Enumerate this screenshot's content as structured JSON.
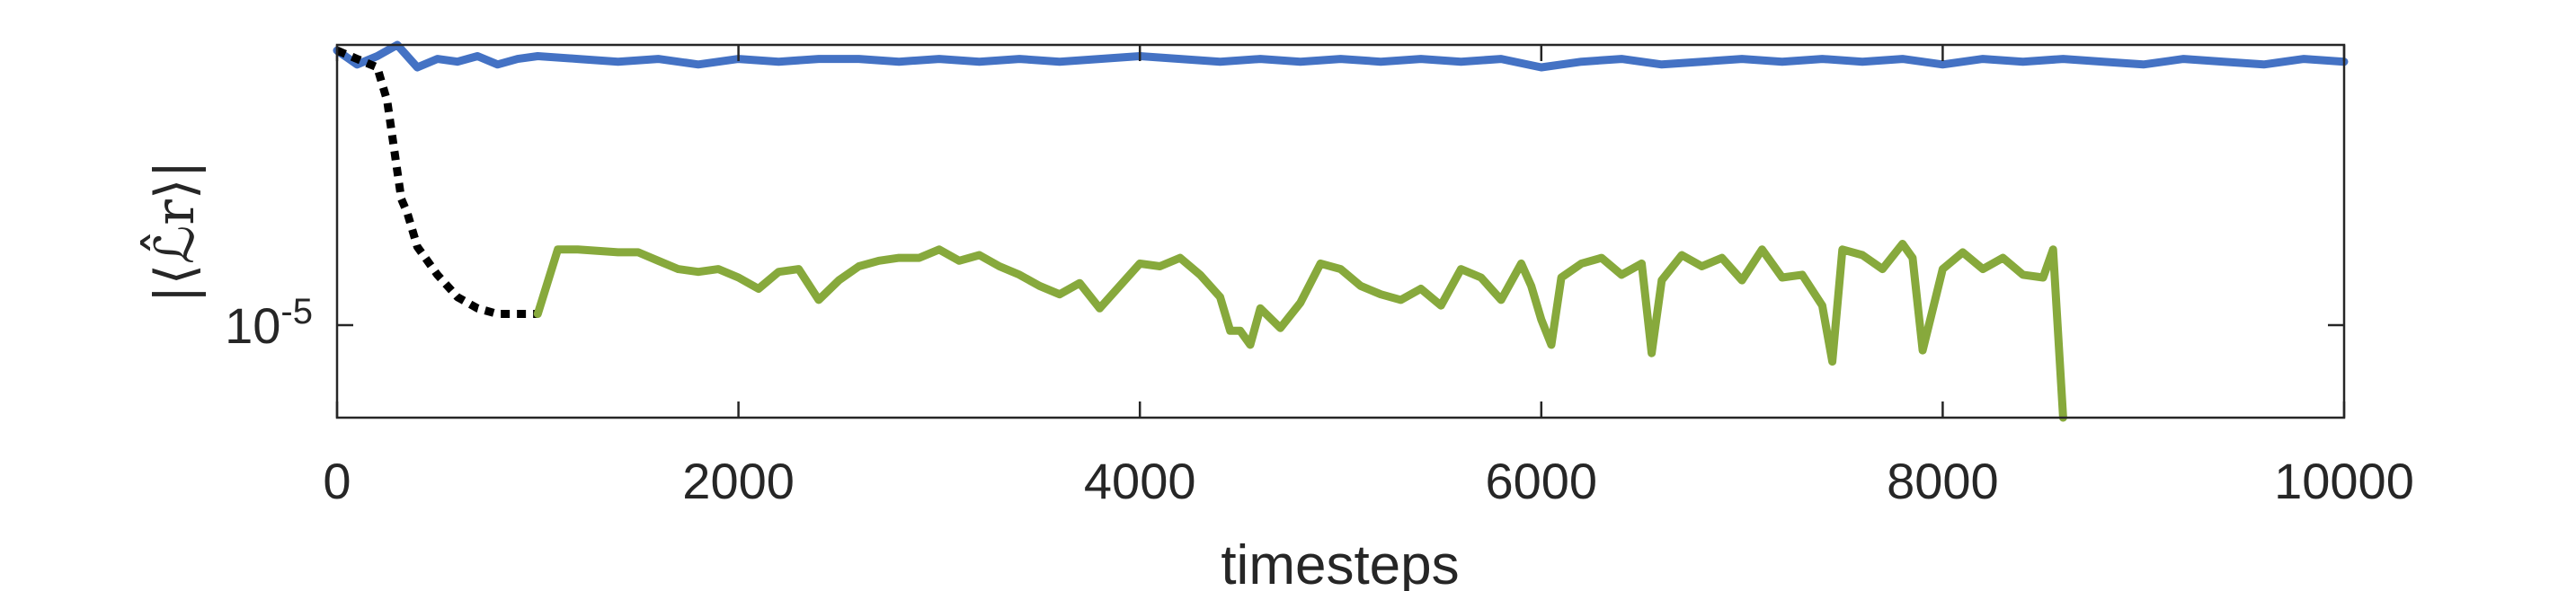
{
  "chart_data": {
    "type": "line",
    "xlabel": "timesteps",
    "ylabel": "|⟨ℒ̂r⟩|",
    "xlim": [
      0,
      10000
    ],
    "ylim_log10": [
      -5.33,
      -4.0
    ],
    "yscale": "log",
    "x_ticks": [
      0,
      2000,
      4000,
      6000,
      8000,
      10000
    ],
    "x_tick_labels": [
      "0",
      "2000",
      "4000",
      "6000",
      "8000",
      "10000"
    ],
    "y_ticks": [
      {
        "value_log10": -5,
        "base": "10",
        "exponent": "-5"
      }
    ],
    "grid": false,
    "legend": "none",
    "series": [
      {
        "color": "#4472c4",
        "style": "solid",
        "x": [
          0,
          100,
          200,
          300,
          400,
          500,
          600,
          700,
          800,
          900,
          1000,
          1200,
          1400,
          1600,
          1800,
          2000,
          2200,
          2400,
          2600,
          2800,
          3000,
          3200,
          3400,
          3600,
          3800,
          4000,
          4200,
          4400,
          4600,
          4800,
          5000,
          5200,
          5400,
          5600,
          5800,
          6000,
          6200,
          6400,
          6600,
          6800,
          7000,
          7200,
          7400,
          7600,
          7800,
          8000,
          8200,
          8400,
          8600,
          8800,
          9000,
          9200,
          9400,
          9600,
          9800,
          10000
        ],
        "y_log10": [
          -4.02,
          -4.07,
          -4.04,
          -4.0,
          -4.08,
          -4.05,
          -4.06,
          -4.04,
          -4.07,
          -4.05,
          -4.04,
          -4.05,
          -4.06,
          -4.05,
          -4.07,
          -4.05,
          -4.06,
          -4.05,
          -4.05,
          -4.06,
          -4.05,
          -4.06,
          -4.05,
          -4.06,
          -4.05,
          -4.04,
          -4.05,
          -4.06,
          -4.05,
          -4.06,
          -4.05,
          -4.06,
          -4.05,
          -4.06,
          -4.05,
          -4.08,
          -4.06,
          -4.05,
          -4.07,
          -4.06,
          -4.05,
          -4.06,
          -4.05,
          -4.06,
          -4.05,
          -4.07,
          -4.05,
          -4.06,
          -4.05,
          -4.06,
          -4.07,
          -4.05,
          -4.06,
          -4.07,
          -4.05,
          -4.06
        ]
      },
      {
        "color": "#000000",
        "style": "dotted",
        "x": [
          0,
          100,
          200,
          250,
          300,
          320,
          350,
          400,
          500,
          600,
          700,
          800,
          900,
          1000
        ],
        "y_log10": [
          -4.02,
          -4.05,
          -4.08,
          -4.2,
          -4.45,
          -4.55,
          -4.6,
          -4.72,
          -4.82,
          -4.9,
          -4.94,
          -4.96,
          -4.96,
          -4.96
        ]
      },
      {
        "color": "#87a93c",
        "style": "solid",
        "x": [
          1000,
          1100,
          1200,
          1400,
          1500,
          1600,
          1700,
          1800,
          1900,
          2000,
          2100,
          2200,
          2300,
          2400,
          2500,
          2600,
          2700,
          2800,
          2900,
          3000,
          3100,
          3200,
          3300,
          3400,
          3500,
          3600,
          3700,
          3800,
          3900,
          4000,
          4100,
          4200,
          4300,
          4400,
          4450,
          4500,
          4550,
          4600,
          4700,
          4800,
          4900,
          5000,
          5100,
          5200,
          5300,
          5400,
          5500,
          5600,
          5700,
          5800,
          5900,
          5950,
          6000,
          6050,
          6100,
          6200,
          6300,
          6400,
          6500,
          6550,
          6600,
          6700,
          6800,
          6900,
          7000,
          7100,
          7200,
          7300,
          7400,
          7450,
          7500,
          7600,
          7700,
          7800,
          7850,
          7900,
          8000,
          8100,
          8200,
          8300,
          8400,
          8500,
          8550,
          8600
        ],
        "y_log10": [
          -4.96,
          -4.73,
          -4.73,
          -4.74,
          -4.74,
          -4.77,
          -4.8,
          -4.81,
          -4.8,
          -4.83,
          -4.87,
          -4.81,
          -4.8,
          -4.91,
          -4.84,
          -4.79,
          -4.77,
          -4.76,
          -4.76,
          -4.73,
          -4.77,
          -4.75,
          -4.79,
          -4.82,
          -4.86,
          -4.89,
          -4.85,
          -4.94,
          -4.86,
          -4.78,
          -4.79,
          -4.76,
          -4.82,
          -4.9,
          -5.02,
          -5.02,
          -5.07,
          -4.94,
          -5.01,
          -4.92,
          -4.78,
          -4.8,
          -4.86,
          -4.89,
          -4.91,
          -4.87,
          -4.93,
          -4.8,
          -4.83,
          -4.91,
          -4.78,
          -4.86,
          -4.98,
          -5.07,
          -4.83,
          -4.78,
          -4.76,
          -4.82,
          -4.78,
          -5.1,
          -4.84,
          -4.75,
          -4.79,
          -4.76,
          -4.84,
          -4.73,
          -4.83,
          -4.82,
          -4.93,
          -5.13,
          -4.73,
          -4.75,
          -4.8,
          -4.71,
          -4.76,
          -5.09,
          -4.8,
          -4.74,
          -4.8,
          -4.76,
          -4.82,
          -4.83,
          -4.73,
          -5.33
        ]
      }
    ]
  }
}
